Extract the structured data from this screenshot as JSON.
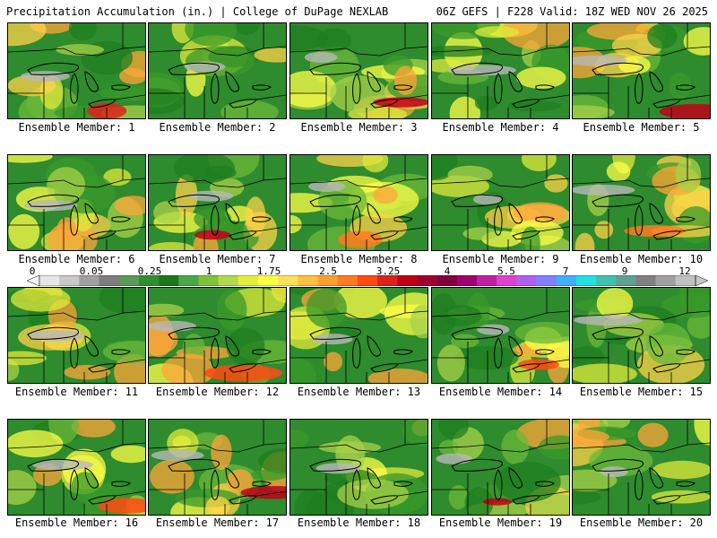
{
  "header": {
    "left": "Precipitation Accumulation (in.) | College of DuPage NEXLAB",
    "right": "06Z GEFS | F228 Valid: 18Z WED NOV 26 2025"
  },
  "colorbar": {
    "tick_labels": [
      "0",
      "0.05",
      "0.25",
      "1",
      "1.75",
      "2.5",
      "3.25",
      "4",
      "5.5",
      "7",
      "9",
      "12"
    ],
    "colors": [
      "#e6e6e6",
      "#c8c8c8",
      "#a0a0a0",
      "#7d7d7d",
      "#5a9a5a",
      "#2f8f2f",
      "#1a7a1a",
      "#4aa84a",
      "#7fc23a",
      "#b3d84a",
      "#e3ee3a",
      "#ffff40",
      "#ffe05a",
      "#ffc040",
      "#ff9f30",
      "#ff7a20",
      "#ff4a10",
      "#e0201a",
      "#c00018",
      "#a00030",
      "#800040",
      "#a00070",
      "#c020a0",
      "#e040d0",
      "#b060f0",
      "#8080ff",
      "#40b0ff",
      "#20e0e0",
      "#40c0b0",
      "#60a090",
      "#808080",
      "#a0a0a0",
      "#c0c0c0"
    ]
  },
  "members": [
    {
      "label": "Ensemble Member: 1"
    },
    {
      "label": "Ensemble Member: 2"
    },
    {
      "label": "Ensemble Member: 3"
    },
    {
      "label": "Ensemble Member: 4"
    },
    {
      "label": "Ensemble Member: 5"
    },
    {
      "label": "Ensemble Member: 6"
    },
    {
      "label": "Ensemble Member: 7"
    },
    {
      "label": "Ensemble Member: 8"
    },
    {
      "label": "Ensemble Member: 9"
    },
    {
      "label": "Ensemble Member: 10"
    },
    {
      "label": "Ensemble Member: 11"
    },
    {
      "label": "Ensemble Member: 12"
    },
    {
      "label": "Ensemble Member: 13"
    },
    {
      "label": "Ensemble Member: 14"
    },
    {
      "label": "Ensemble Member: 15"
    },
    {
      "label": "Ensemble Member: 16"
    },
    {
      "label": "Ensemble Member: 17"
    },
    {
      "label": "Ensemble Member: 18"
    },
    {
      "label": "Ensemble Member: 19"
    },
    {
      "label": "Ensemble Member: 20"
    }
  ]
}
